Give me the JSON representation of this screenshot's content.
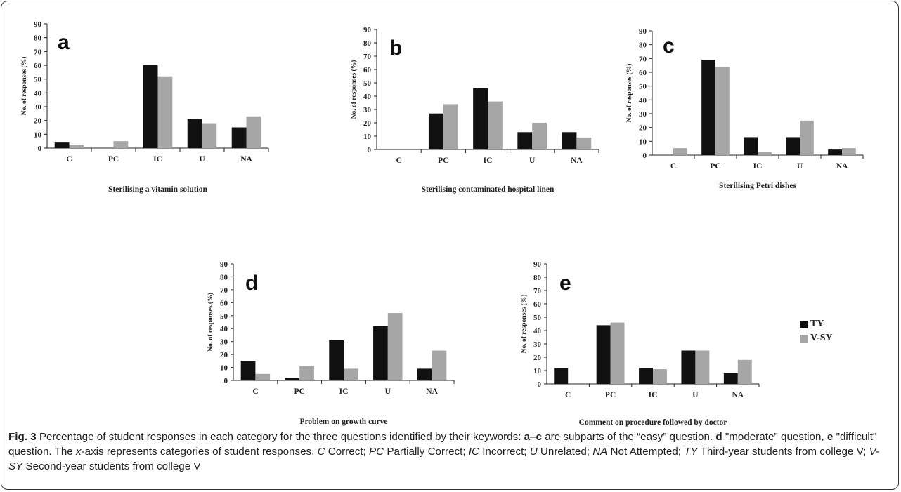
{
  "chart_data": [
    {
      "type": "bar",
      "panel_letter": "a",
      "title": "Sterilising a vitamin solution",
      "ylabel": "No. of responses (%)",
      "categories": [
        "C",
        "PC",
        "IC",
        "U",
        "NA"
      ],
      "series": [
        {
          "name": "TY",
          "values": [
            4,
            0,
            60,
            21,
            15
          ]
        },
        {
          "name": "V-SY",
          "values": [
            2.5,
            5,
            52,
            18,
            23
          ]
        }
      ],
      "yticks": [
        "0",
        "10",
        "20",
        "30",
        "40",
        "50",
        "60",
        "70",
        "80",
        "90"
      ],
      "ylim": [
        0,
        90
      ]
    },
    {
      "type": "bar",
      "panel_letter": "b",
      "title": "Sterilising contaminated hospital linen",
      "ylabel": "No. of responses (%)",
      "categories": [
        "C",
        "PC",
        "IC",
        "U",
        "NA"
      ],
      "series": [
        {
          "name": "TY",
          "values": [
            0,
            27,
            46,
            13,
            13
          ]
        },
        {
          "name": "V-SY",
          "values": [
            0,
            34,
            36,
            20,
            9
          ]
        }
      ],
      "yticks": [
        "0",
        "10",
        "20",
        "30",
        "40",
        "50",
        "60",
        "70",
        "80",
        "90"
      ],
      "ylim": [
        0,
        90
      ]
    },
    {
      "type": "bar",
      "panel_letter": "c",
      "title": "Sterilising Petri dishes",
      "ylabel": "No. of responses (%)",
      "categories": [
        "C",
        "PC",
        "IC",
        "U",
        "NA"
      ],
      "series": [
        {
          "name": "TY",
          "values": [
            0,
            69,
            13,
            13,
            4
          ]
        },
        {
          "name": "V-SY",
          "values": [
            5,
            64,
            2.5,
            25,
            5
          ]
        }
      ],
      "yticks": [
        "0",
        "10",
        "20",
        "30",
        "40",
        "50",
        "60",
        "70",
        "80",
        "90"
      ],
      "ylim": [
        0,
        90
      ]
    },
    {
      "type": "bar",
      "panel_letter": "d",
      "title": "Problem on growth curve",
      "ylabel": "No. of responses (%)",
      "categories": [
        "C",
        "PC",
        "IC",
        "U",
        "NA"
      ],
      "series": [
        {
          "name": "TY",
          "values": [
            15,
            2,
            31,
            42,
            9
          ]
        },
        {
          "name": "V-SY",
          "values": [
            5,
            11,
            9,
            52,
            23
          ]
        }
      ],
      "yticks": [
        "0",
        "10",
        "20",
        "30",
        "40",
        "50",
        "60",
        "70",
        "80",
        "90"
      ],
      "ylim": [
        0,
        90
      ]
    },
    {
      "type": "bar",
      "panel_letter": "e",
      "title": "Comment on procedure followed by doctor",
      "ylabel": "No. of responses (%)",
      "categories": [
        "C",
        "PC",
        "IC",
        "U",
        "NA"
      ],
      "series": [
        {
          "name": "TY",
          "values": [
            12,
            44,
            12,
            25,
            8
          ]
        },
        {
          "name": "V-SY",
          "values": [
            0,
            46,
            11,
            25,
            18
          ]
        }
      ],
      "yticks": [
        "0",
        "10",
        "20",
        "30",
        "40",
        "50",
        "60",
        "70",
        "80",
        "90"
      ],
      "ylim": [
        0,
        90
      ]
    }
  ],
  "legend": {
    "placement": "right",
    "items": [
      {
        "label": "TY",
        "color": "#111111"
      },
      {
        "label": "V-SY",
        "color": "#a6a6a6"
      }
    ]
  },
  "colors": {
    "TY": "#111111",
    "V-SY": "#a6a6a6"
  },
  "caption": {
    "fig_label": "Fig. 3",
    "p1": " Percentage of student responses in each category for the three questions identified by their keywords: ",
    "a_label": "a",
    "dash": "–",
    "c_label": "c",
    "p2": " are subparts of the “easy” question. ",
    "d_label": "d",
    "p3": " \"moderate\" question, ",
    "e_label": "e",
    "p4": " \"difficult\" question. The ",
    "x_italic": "x",
    "p5": "-axis represents categories of student responses. ",
    "abbr_C": "C",
    "def_C": " Correct; ",
    "abbr_PC": "PC",
    "def_PC": " Partially Correct; ",
    "abbr_IC": "IC",
    "def_IC": " Incorrect; ",
    "abbr_U": "U",
    "def_U": " Unrelated; ",
    "abbr_NA": "NA",
    "def_NA": " Not Attempted; ",
    "abbr_TY": "TY",
    "def_TY": " Third-year students from college V; ",
    "abbr_VSY": "V-SY",
    "def_VSY": " Second-year students from college V"
  }
}
